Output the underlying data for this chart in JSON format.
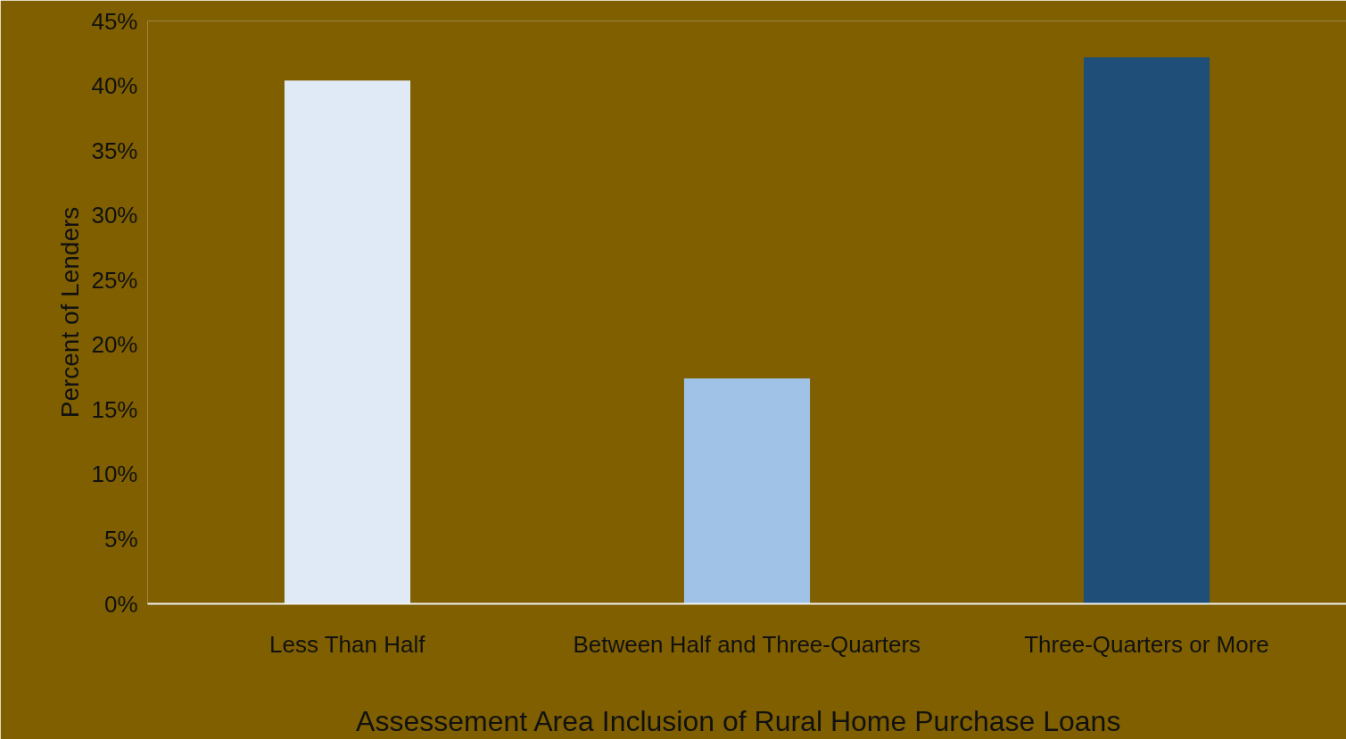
{
  "chart_data": {
    "type": "bar",
    "xlabel": "Assessement  Area Inclusion of Rural Home Purchase  Loans",
    "ylabel": "Percent of Lenders",
    "categories": [
      "Less Than Half",
      "Between Half and Three-Quarters",
      "Three-Quarters or More"
    ],
    "values": [
      40.4,
      17.4,
      42.2
    ],
    "colors": [
      "#dfeaf6",
      "#a0c2e6",
      "#1f4e79"
    ],
    "ylim": [
      0,
      45
    ],
    "yticks": [
      {
        "value": 0,
        "label": "0%"
      },
      {
        "value": 5,
        "label": "5%"
      },
      {
        "value": 10,
        "label": "10%"
      },
      {
        "value": 15,
        "label": "15%"
      },
      {
        "value": 20,
        "label": "20%"
      },
      {
        "value": 25,
        "label": "25%"
      },
      {
        "value": 30,
        "label": "30%"
      },
      {
        "value": 35,
        "label": "35%"
      },
      {
        "value": 40,
        "label": "40%"
      },
      {
        "value": 45,
        "label": "45%"
      }
    ],
    "grid": false
  }
}
